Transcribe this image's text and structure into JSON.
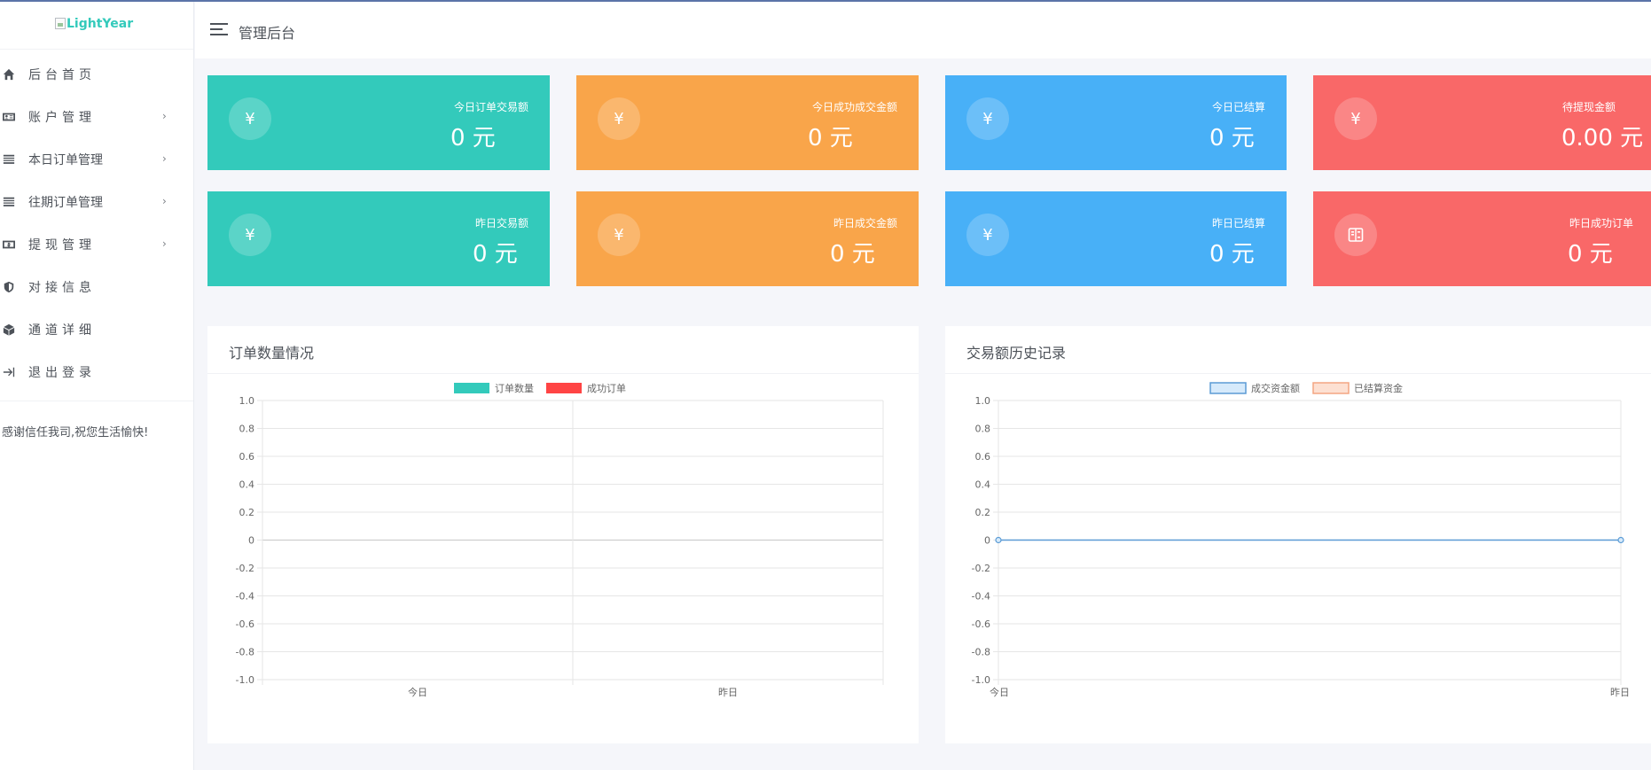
{
  "sidebar": {
    "logo_text": "LightYear",
    "items": [
      {
        "label": "后台首页",
        "icon": "home-icon",
        "has_arrow": false
      },
      {
        "label": "账户管理",
        "icon": "id-card-icon",
        "has_arrow": true
      },
      {
        "label": "本日订单管理",
        "icon": "list-icon",
        "has_arrow": true
      },
      {
        "label": "往期订单管理",
        "icon": "list-icon",
        "has_arrow": true
      },
      {
        "label": "提现管理",
        "icon": "cash-icon",
        "has_arrow": true
      },
      {
        "label": "对接信息",
        "icon": "shield-icon",
        "has_arrow": false
      },
      {
        "label": "通道详细",
        "icon": "cube-icon",
        "has_arrow": false
      },
      {
        "label": "退出登录",
        "icon": "logout-icon",
        "has_arrow": false
      }
    ],
    "arrow_glyph": "›",
    "thanks": "感谢信任我司,祝您生活愉快!"
  },
  "header": {
    "title": "管理后台",
    "menu_icon": "hamburger-icon"
  },
  "cards": [
    {
      "label": "今日订单交易额",
      "value": "0 元",
      "icon": "yen-icon",
      "glyph": "¥",
      "color": "#33cabb"
    },
    {
      "label": "今日成功成交金额",
      "value": "0 元",
      "icon": "yen-icon",
      "glyph": "¥",
      "color": "#f9a54a"
    },
    {
      "label": "今日已结算",
      "value": "0 元",
      "icon": "yen-icon",
      "glyph": "¥",
      "color": "#48b0f7"
    },
    {
      "label": "待提现金额",
      "value": "0.00 元",
      "icon": "yen-icon",
      "glyph": "¥",
      "color": "#f96868"
    },
    {
      "label": "昨日交易额",
      "value": "0 元",
      "icon": "yen-icon",
      "glyph": "¥",
      "color": "#33cabb"
    },
    {
      "label": "昨日成交金额",
      "value": "0 元",
      "icon": "yen-icon",
      "glyph": "¥",
      "color": "#f9a54a"
    },
    {
      "label": "昨日已结算",
      "value": "0 元",
      "icon": "yen-icon",
      "glyph": "¥",
      "color": "#48b0f7"
    },
    {
      "label": "昨日成功订单",
      "value": "0 元",
      "icon": "receipt-icon",
      "glyph": "",
      "color": "#f96868"
    }
  ],
  "panels": [
    {
      "title": "订单数量情况"
    },
    {
      "title": "交易额历史记录"
    }
  ],
  "chart_data": [
    {
      "type": "bar",
      "categories": [
        "今日",
        "昨日"
      ],
      "series": [
        {
          "name": "订单数量",
          "values": [
            0,
            0
          ],
          "color": "#33cabb"
        },
        {
          "name": "成功订单",
          "values": [
            0,
            0
          ],
          "color": "#ff4444"
        }
      ],
      "ylim": [
        -1.0,
        1.0
      ],
      "yticks": [
        "1.0",
        "0.8",
        "0.6",
        "0.4",
        "0.2",
        "0",
        "-0.2",
        "-0.4",
        "-0.6",
        "-0.8",
        "-1.0"
      ],
      "legend": "top-center",
      "grid": true
    },
    {
      "type": "line",
      "categories": [
        "今日",
        "昨日"
      ],
      "series": [
        {
          "name": "成交资金额",
          "values": [
            0,
            0
          ],
          "color": "#5b9bd5",
          "fill": "#d6eafb"
        },
        {
          "name": "已结算资金",
          "values": [
            null,
            null
          ],
          "color": "#f4a582",
          "fill": "#fde0d2"
        }
      ],
      "ylim": [
        -1.0,
        1.0
      ],
      "yticks": [
        "1.0",
        "0.8",
        "0.6",
        "0.4",
        "0.2",
        "0",
        "-0.2",
        "-0.4",
        "-0.6",
        "-0.8",
        "-1.0"
      ],
      "legend": "top-center",
      "grid": true
    }
  ]
}
